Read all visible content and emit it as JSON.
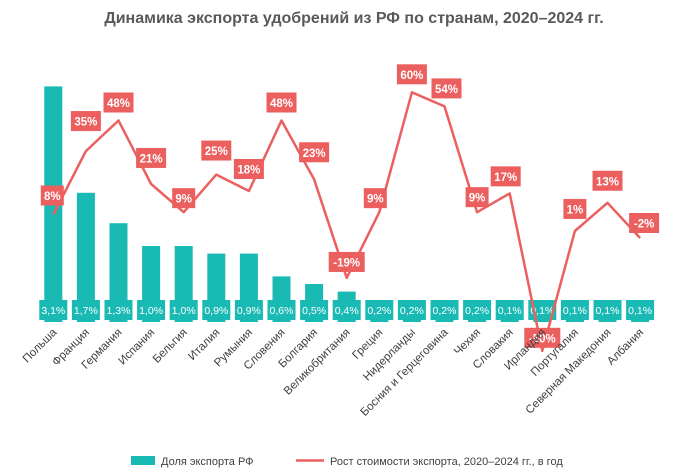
{
  "chart_data": {
    "type": "bar+line",
    "title": "Динамика  экспорта  удобрений  из РФ по странам, 2020–2024  гг.",
    "categories": [
      "Польша",
      "Франция",
      "Германия",
      "Испания",
      "Бельгия",
      "Италия",
      "Румыния",
      "Словения",
      "Болгария",
      "Великобритания",
      "Греция",
      "Нидерланды",
      "Босния и Герцеговина",
      "Чехия",
      "Словакия",
      "Ирландия",
      "Португалия",
      "Северная Македония",
      "Албания"
    ],
    "series": [
      {
        "name": "Доля экспорта РФ",
        "type": "bar",
        "color": "#1ABAB4",
        "values": [
          3.1,
          1.7,
          1.3,
          1.0,
          1.0,
          0.9,
          0.9,
          0.6,
          0.5,
          0.4,
          0.2,
          0.2,
          0.2,
          0.2,
          0.1,
          0.1,
          0.1,
          0.1,
          0.1
        ],
        "labels": [
          "3,1%",
          "1,7%",
          "1,3%",
          "1,0%",
          "1,0%",
          "0,9%",
          "0,9%",
          "0,6%",
          "0,5%",
          "0,4%",
          "0,2%",
          "0,2%",
          "0,2%",
          "0,2%",
          "0,1%",
          "0,1%",
          "0,1%",
          "0,1%",
          "0,1%"
        ]
      },
      {
        "name": "Рост стоимости экспорта, 2020–2024 гг., в год",
        "type": "line",
        "color": "#EC5F5F",
        "values": [
          8,
          35,
          48,
          21,
          9,
          25,
          18,
          48,
          23,
          -19,
          9,
          60,
          54,
          9,
          17,
          -50,
          1,
          13,
          -2
        ],
        "labels": [
          "8%",
          "35%",
          "48%",
          "21%",
          "9%",
          "25%",
          "18%",
          "48%",
          "23%",
          "-19%",
          "9%",
          "60%",
          "54%",
          "9%",
          "17%",
          "-50%",
          "1%",
          "13%",
          "-2%"
        ]
      }
    ],
    "legend": "bottom",
    "grid": false
  }
}
